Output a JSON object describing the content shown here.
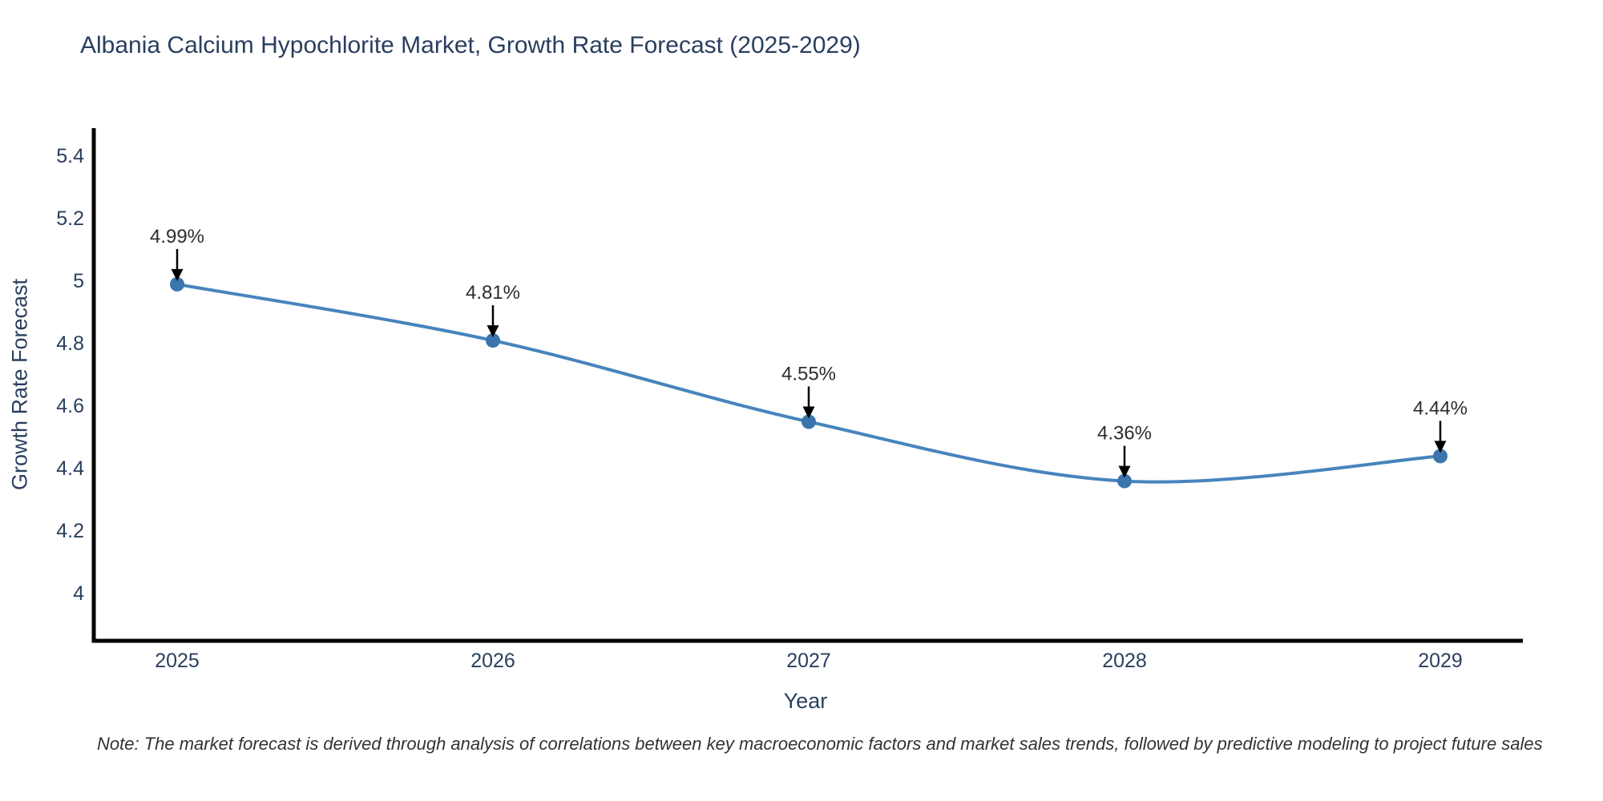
{
  "title": "Albania Calcium Hypochlorite Market, Growth Rate Forecast (2025-2029)",
  "note": "Note: The market forecast is derived through analysis of correlations between key macroeconomic factors and market sales trends, followed by predictive modeling to project future sales",
  "chart_data": {
    "type": "line",
    "title": "Albania Calcium Hypochlorite Market, Growth Rate Forecast (2025-2029)",
    "xlabel": "Year",
    "ylabel": "Growth Rate Forecast",
    "x": [
      2025,
      2026,
      2027,
      2028,
      2029
    ],
    "x_labels": [
      "2025",
      "2026",
      "2027",
      "2028",
      "2029"
    ],
    "series": [
      {
        "name": "Growth Rate Forecast",
        "values": [
          4.99,
          4.81,
          4.55,
          4.36,
          4.44
        ],
        "point_labels": [
          "4.99%",
          "4.81%",
          "4.55%",
          "4.36%",
          "4.44%"
        ]
      }
    ],
    "line_shape": "spline",
    "markers": true,
    "annotations_with_arrows": true,
    "grid": false,
    "legend": "none",
    "ylim": [
      3.85,
      5.5
    ],
    "yticks": {
      "values": [
        5.4,
        5.2,
        5.0,
        4.8,
        4.6,
        4.4,
        4.2,
        4.0
      ],
      "labels": [
        "5.4",
        "5.2",
        "5",
        "4.8",
        "4.6",
        "4.4",
        "4.2",
        "4"
      ]
    },
    "colors": {
      "line": "#4784bd",
      "marker": "#3a76ad",
      "axis_line": "#000000",
      "tick_text": "#2a3f5f",
      "annotation_text": "#2d2d2d",
      "arrow": "#000000"
    }
  }
}
